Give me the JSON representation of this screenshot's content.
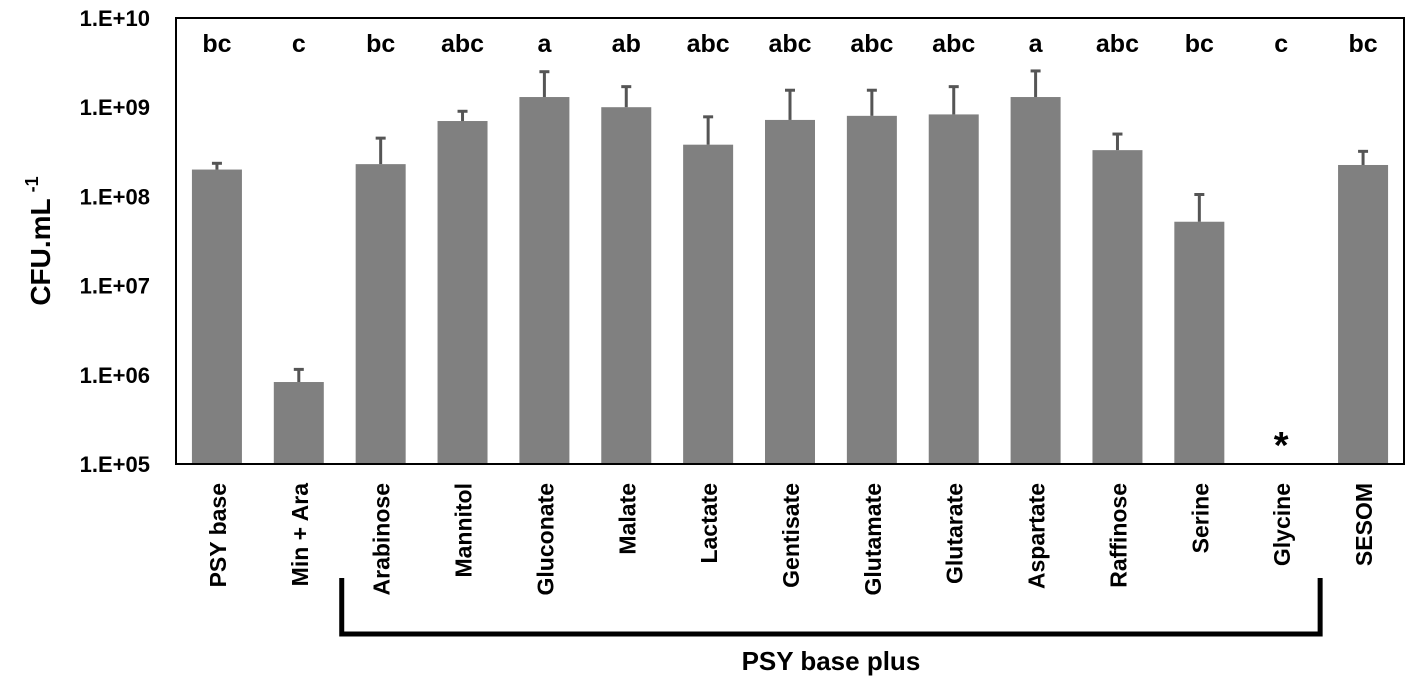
{
  "chart_data": {
    "type": "bar",
    "ylabel_main": "CFU.mL",
    "ylabel_sup": "-1",
    "yscale": "log",
    "ylim": [
      100000,
      10000000000
    ],
    "yticks": [
      {
        "value": 100000,
        "label": "1.E+05"
      },
      {
        "value": 1000000,
        "label": "1.E+06"
      },
      {
        "value": 10000000,
        "label": "1.E+07"
      },
      {
        "value": 100000000,
        "label": "1.E+08"
      },
      {
        "value": 1000000000,
        "label": "1.E+09"
      },
      {
        "value": 10000000000,
        "label": "1.E+10"
      }
    ],
    "categories": [
      "PSY base",
      "Min + Ara",
      "Arabinose",
      "Mannitol",
      "Gluconate",
      "Malate",
      "Lactate",
      "Gentisate",
      "Glutamate",
      "Glutarate",
      "Aspartate",
      "Raffinose",
      "Serine",
      "Glycine",
      "SESOM"
    ],
    "values": [
      200000000,
      830000,
      230000000,
      700000000,
      1300000000,
      1000000000,
      380000000,
      720000000,
      800000000,
      830000000,
      1300000000,
      330000000,
      52000000,
      null,
      225000000
    ],
    "error_upper": [
      235000000,
      1150000,
      450000000,
      900000000,
      2500000000,
      1700000000,
      780000000,
      1550000000,
      1550000000,
      1700000000,
      2550000000,
      500000000,
      105000000,
      null,
      320000000
    ],
    "significance_letters": [
      "bc",
      "c",
      "bc",
      "abc",
      "a",
      "ab",
      "abc",
      "abc",
      "abc",
      "abc",
      "a",
      "abc",
      "bc",
      "c",
      "bc"
    ],
    "missing_marker": "*",
    "missing_index": 13,
    "group_label": "PSY base plus",
    "group_start_index": 2,
    "group_end_index": 13,
    "bar_color": "#808080",
    "grid": false,
    "legend": "none"
  }
}
